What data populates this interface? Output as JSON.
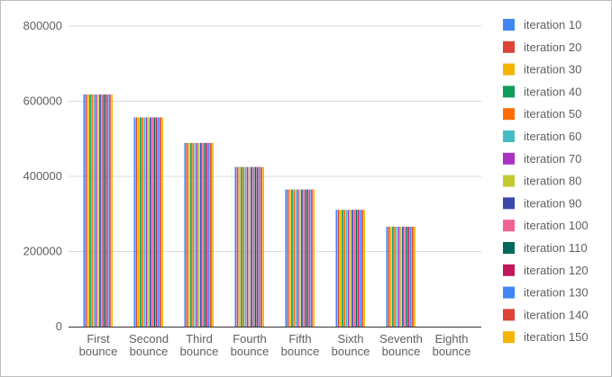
{
  "chart_data": {
    "type": "bar",
    "title": "",
    "xlabel": "",
    "ylabel": "",
    "ylim": [
      0,
      800000
    ],
    "yticks": [
      0,
      200000,
      400000,
      600000,
      800000
    ],
    "ytick_labels": [
      "0",
      "200000",
      "400000",
      "600000",
      "800000"
    ],
    "grid": true,
    "legend_position": "right",
    "categories": [
      [
        "First",
        "bounce"
      ],
      [
        "Second",
        "bounce"
      ],
      [
        "Third",
        "bounce"
      ],
      [
        "Fourth",
        "bounce"
      ],
      [
        "Fifth",
        "bounce"
      ],
      [
        "Sixth",
        "bounce"
      ],
      [
        "Seventh",
        "bounce"
      ],
      [
        "Eighth",
        "bounce"
      ]
    ],
    "category_values": [
      618000,
      557000,
      489000,
      425000,
      365000,
      311000,
      266000,
      0
    ],
    "series": [
      {
        "name": "iteration 10",
        "color": "#4285f4"
      },
      {
        "name": "iteration 20",
        "color": "#db4437"
      },
      {
        "name": "iteration 30",
        "color": "#f4b400"
      },
      {
        "name": "iteration 40",
        "color": "#0f9d58"
      },
      {
        "name": "iteration 50",
        "color": "#ff6d00"
      },
      {
        "name": "iteration 60",
        "color": "#46bdc6"
      },
      {
        "name": "iteration 70",
        "color": "#ab30c4"
      },
      {
        "name": "iteration 80",
        "color": "#c0ca33"
      },
      {
        "name": "iteration 90",
        "color": "#3949ab"
      },
      {
        "name": "iteration 100",
        "color": "#f06292"
      },
      {
        "name": "iteration 110",
        "color": "#00695c"
      },
      {
        "name": "iteration 120",
        "color": "#c2185b"
      },
      {
        "name": "iteration 130",
        "color": "#4285f4"
      },
      {
        "name": "iteration 140",
        "color": "#db4437"
      },
      {
        "name": "iteration 150",
        "color": "#f4b400"
      }
    ]
  }
}
